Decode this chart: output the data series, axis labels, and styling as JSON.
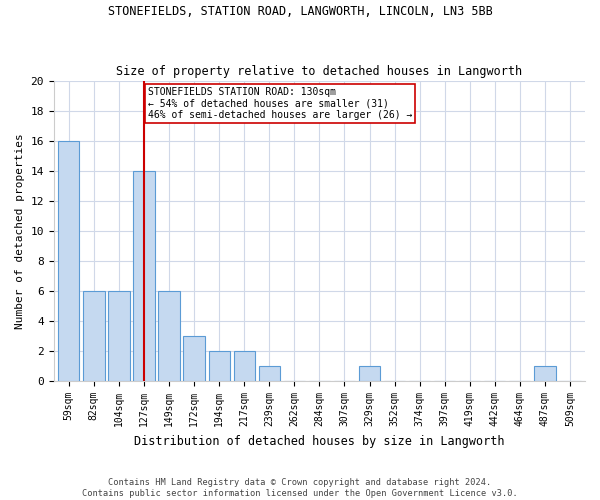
{
  "title": "STONEFIELDS, STATION ROAD, LANGWORTH, LINCOLN, LN3 5BB",
  "subtitle": "Size of property relative to detached houses in Langworth",
  "xlabel": "Distribution of detached houses by size in Langworth",
  "ylabel": "Number of detached properties",
  "categories": [
    "59sqm",
    "82sqm",
    "104sqm",
    "127sqm",
    "149sqm",
    "172sqm",
    "194sqm",
    "217sqm",
    "239sqm",
    "262sqm",
    "284sqm",
    "307sqm",
    "329sqm",
    "352sqm",
    "374sqm",
    "397sqm",
    "419sqm",
    "442sqm",
    "464sqm",
    "487sqm",
    "509sqm"
  ],
  "values": [
    16,
    6,
    6,
    14,
    6,
    3,
    2,
    2,
    1,
    0,
    0,
    0,
    1,
    0,
    0,
    0,
    0,
    0,
    0,
    1,
    0
  ],
  "bar_color": "#c5d9f0",
  "bar_edge_color": "#5b9bd5",
  "ylim": [
    0,
    20
  ],
  "yticks": [
    0,
    2,
    4,
    6,
    8,
    10,
    12,
    14,
    16,
    18,
    20
  ],
  "vline_x": 3,
  "vline_color": "#cc0000",
  "annotation_line1": "STONEFIELDS STATION ROAD: 130sqm",
  "annotation_line2": "← 54% of detached houses are smaller (31)",
  "annotation_line3": "46% of semi-detached houses are larger (26) →",
  "annotation_box_color": "#cc0000",
  "footnote": "Contains HM Land Registry data © Crown copyright and database right 2024.\nContains public sector information licensed under the Open Government Licence v3.0.",
  "bg_color": "#ffffff",
  "grid_color": "#d0d8e8",
  "title_fontsize": 8.5,
  "subtitle_fontsize": 8.5
}
